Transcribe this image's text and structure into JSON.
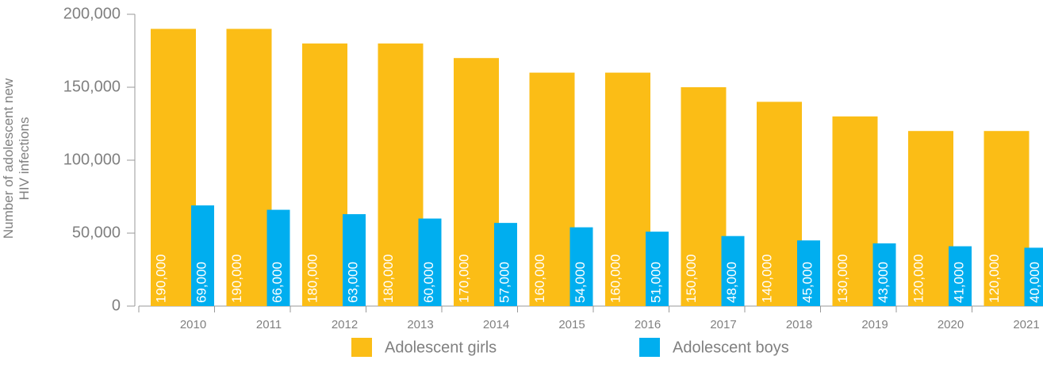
{
  "chart_data": {
    "type": "bar",
    "ylabel": [
      "Number of adolescent new",
      "HIV infections"
    ],
    "categories": [
      "2010",
      "2011",
      "2012",
      "2013",
      "2014",
      "2015",
      "2016",
      "2017",
      "2018",
      "2019",
      "2020",
      "2021"
    ],
    "series": [
      {
        "name": "Adolescent girls",
        "color": "#fbbd16",
        "values": [
          190000,
          190000,
          180000,
          180000,
          170000,
          160000,
          160000,
          150000,
          140000,
          130000,
          120000,
          120000
        ],
        "value_labels": [
          "190,000",
          "190,000",
          "180,000",
          "180,000",
          "170,000",
          "160,000",
          "160,000",
          "150,000",
          "140,000",
          "130,000",
          "120,000",
          "120,000"
        ]
      },
      {
        "name": "Adolescent boys",
        "color": "#00aeef",
        "values": [
          69000,
          66000,
          63000,
          60000,
          57000,
          54000,
          51000,
          48000,
          45000,
          43000,
          41000,
          40000
        ],
        "value_labels": [
          "69,000",
          "66,000",
          "63,000",
          "60,000",
          "57,000",
          "54,000",
          "51,000",
          "48,000",
          "45,000",
          "43,000",
          "41,000",
          "40,000"
        ]
      }
    ],
    "ylim": [
      0,
      200000
    ],
    "yticks": [
      0,
      {
        "value": 50000,
        "label": "50,000"
      },
      {
        "value": 100000,
        "label": "100,000"
      },
      {
        "value": 150000,
        "label": "150,000"
      },
      {
        "value": 200000,
        "label": "200,000"
      }
    ]
  }
}
